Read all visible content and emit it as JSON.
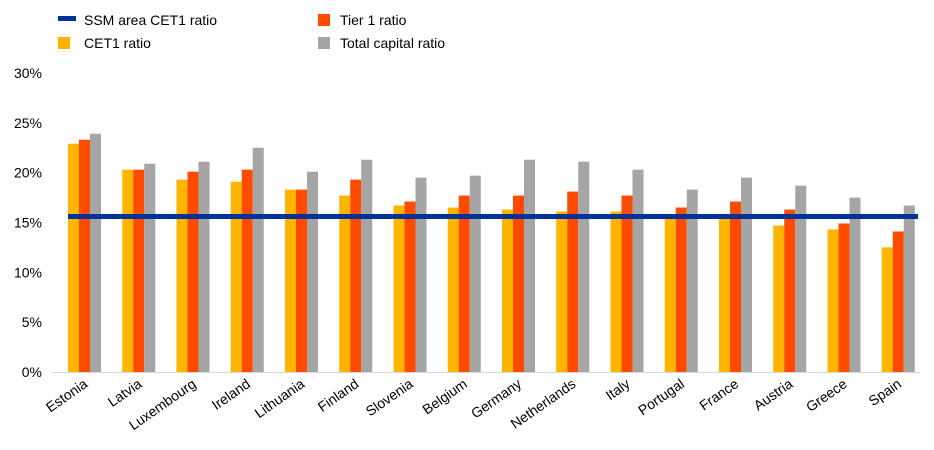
{
  "chart_data": {
    "type": "bar",
    "categories": [
      "Estonia",
      "Latvia",
      "Luxembourg",
      "Ireland",
      "Lithuania",
      "Finland",
      "Slovenia",
      "Belgium",
      "Germany",
      "Netherlands",
      "Italy",
      "Portugal",
      "France",
      "Austria",
      "Greece",
      "Spain"
    ],
    "series": [
      {
        "name": "CET1 ratio",
        "color": "#FFB400",
        "values": [
          22.9,
          20.3,
          19.3,
          19.1,
          18.3,
          17.7,
          16.7,
          16.5,
          16.3,
          16.1,
          16.1,
          15.5,
          15.5,
          14.7,
          14.3,
          12.5
        ]
      },
      {
        "name": "Tier 1 ratio",
        "color": "#FF4B00",
        "values": [
          23.3,
          20.3,
          20.1,
          20.3,
          18.3,
          19.3,
          17.1,
          17.7,
          17.7,
          18.1,
          17.7,
          16.5,
          17.1,
          16.3,
          14.9,
          14.1
        ]
      },
      {
        "name": "Total capital ratio",
        "color": "#A5A5A5",
        "values": [
          23.9,
          20.9,
          21.1,
          22.5,
          20.1,
          21.3,
          19.5,
          19.7,
          21.3,
          21.1,
          20.3,
          18.3,
          19.5,
          18.7,
          17.5,
          16.7
        ]
      }
    ],
    "reference_line": {
      "name": "SSM area CET1 ratio",
      "color": "#003299",
      "value": 15.6
    },
    "yticks": [
      "0%",
      "5%",
      "10%",
      "15%",
      "20%",
      "25%",
      "30%"
    ],
    "ylim": [
      0,
      30
    ],
    "grid": false,
    "legend": "top-left"
  }
}
